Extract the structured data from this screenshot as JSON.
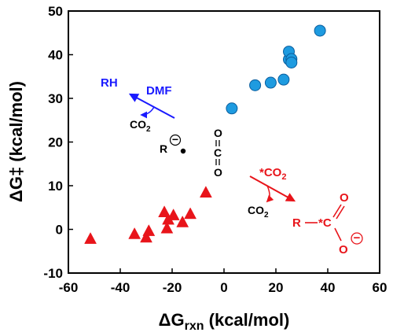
{
  "chart_data": {
    "type": "scatter",
    "xlabel": "ΔGrxn (kcal/mol)",
    "xlabel_parts": {
      "delta": "ΔG",
      "sub": "rxn",
      "unit": " (kcal/mol)"
    },
    "ylabel": "ΔG‡ (kcal/mol)",
    "xlim": [
      -60,
      60
    ],
    "ylim": [
      -10,
      50
    ],
    "xticks": [
      -60,
      -40,
      -20,
      0,
      20,
      40,
      60
    ],
    "yticks": [
      -10,
      0,
      10,
      20,
      30,
      40,
      50
    ],
    "grid": false,
    "series": [
      {
        "marker": "circle",
        "color": "#1e9be0",
        "points": [
          [
            3,
            27.7
          ],
          [
            12,
            33
          ],
          [
            18,
            33.6
          ],
          [
            23,
            34.3
          ],
          [
            25,
            38.9
          ],
          [
            25,
            40.7
          ],
          [
            26,
            39
          ],
          [
            26,
            38.2
          ],
          [
            37,
            45.5
          ]
        ]
      },
      {
        "marker": "triangle",
        "color": "#e8141a",
        "points": [
          [
            -51.5,
            -2.3
          ],
          [
            -34.5,
            -1.2
          ],
          [
            -30,
            -2
          ],
          [
            -29,
            -0.5
          ],
          [
            -23,
            3.8
          ],
          [
            -22,
            0.1
          ],
          [
            -21.5,
            2.1
          ],
          [
            -19.5,
            3.1
          ],
          [
            -16,
            1.5
          ],
          [
            -13,
            3.4
          ],
          [
            -7,
            8.3
          ]
        ]
      }
    ],
    "annotations": {
      "blue": {
        "rh": "RH",
        "dmf": "DMF",
        "co2_main": "CO",
        "co2_sub": "2"
      },
      "center": {
        "r": "R",
        "charge": "−",
        "c": "C",
        "o_top": "O",
        "o_bottom": "O"
      },
      "red": {
        "reagent": "*CO",
        "reagent_sub": "2",
        "co2_main": "CO",
        "co2_sub": "2",
        "r": "R",
        "c": "*C",
        "o_top": "O",
        "o_bottom": "O",
        "charge": "−"
      }
    }
  }
}
